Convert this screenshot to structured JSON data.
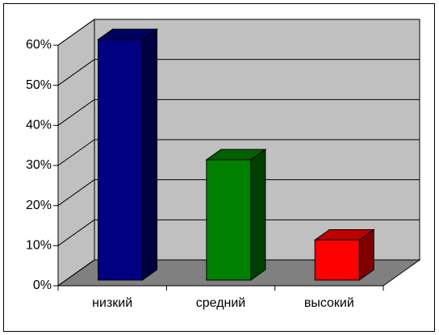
{
  "chart_data": {
    "type": "bar3d",
    "categories": [
      "низкий",
      "средний",
      "высокий"
    ],
    "series": [
      {
        "name": null,
        "values": [
          60,
          30,
          10
        ],
        "colors": [
          "#000080",
          "#008000",
          "#ff0000"
        ]
      }
    ],
    "ylim": [
      0,
      60
    ],
    "yticks": [
      {
        "value": 0,
        "label": "0%"
      },
      {
        "value": 10,
        "label": "10%"
      },
      {
        "value": 20,
        "label": "20%"
      },
      {
        "value": 30,
        "label": "30%"
      },
      {
        "value": 40,
        "label": "40%"
      },
      {
        "value": 50,
        "label": "50%"
      },
      {
        "value": 60,
        "label": "60%"
      }
    ],
    "grid": true
  }
}
